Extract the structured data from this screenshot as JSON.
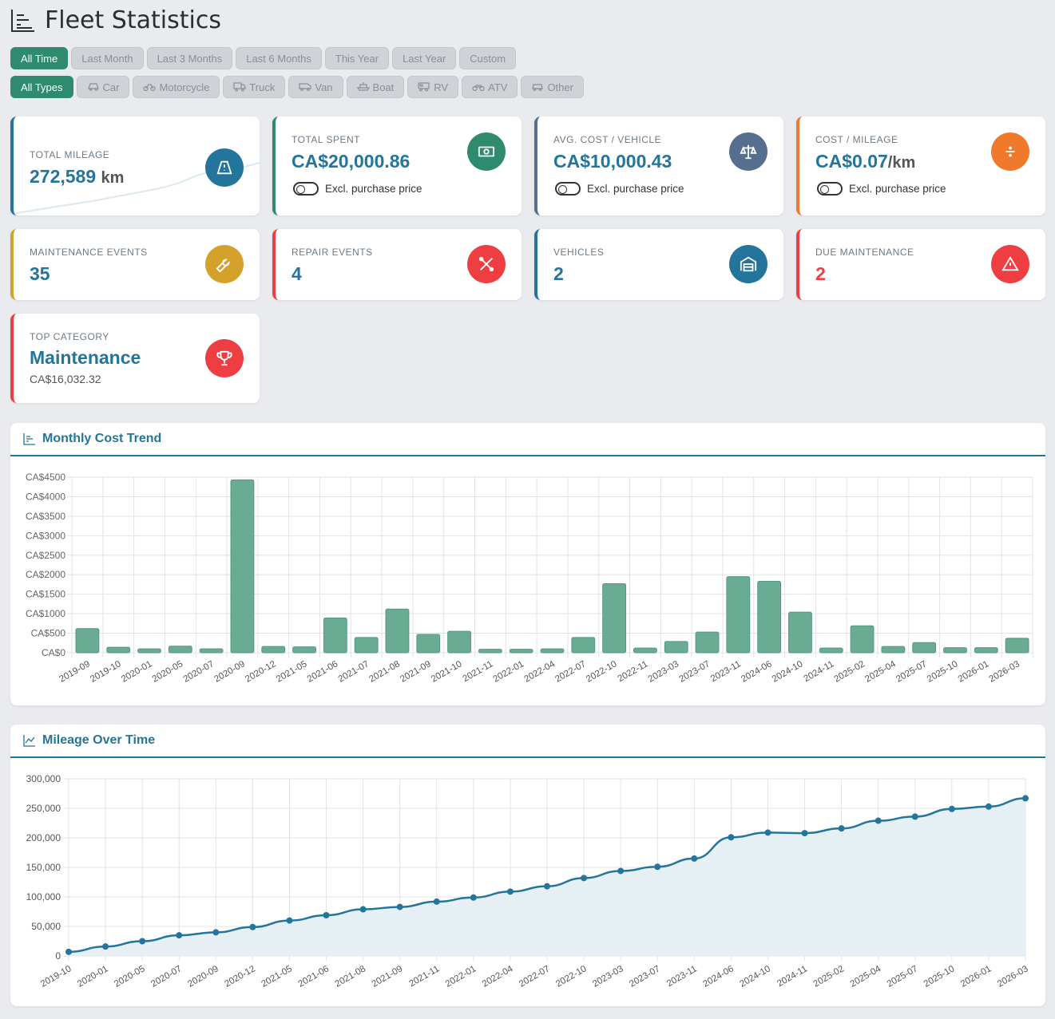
{
  "page": {
    "title": "Fleet Statistics"
  },
  "date_filters": [
    "All Time",
    "Last Month",
    "Last 3 Months",
    "Last 6 Months",
    "This Year",
    "Last Year",
    "Custom"
  ],
  "type_filters": [
    {
      "label": "All Types",
      "icon": "none"
    },
    {
      "label": "Car",
      "icon": "car-icon"
    },
    {
      "label": "Motorcycle",
      "icon": "motorcycle-icon"
    },
    {
      "label": "Truck",
      "icon": "truck-icon"
    },
    {
      "label": "Van",
      "icon": "van-icon"
    },
    {
      "label": "Boat",
      "icon": "boat-icon"
    },
    {
      "label": "RV",
      "icon": "rv-icon"
    },
    {
      "label": "ATV",
      "icon": "atv-icon"
    },
    {
      "label": "Other",
      "icon": "other-vehicle-icon"
    }
  ],
  "active_date_filter": "All Time",
  "active_type_filter": "All Types",
  "stats": {
    "total_mileage": {
      "label": "Total Mileage",
      "value": "272,589",
      "unit": "km",
      "icon": "road-icon",
      "color": "#23759b"
    },
    "total_spent": {
      "label": "Total Spent",
      "value": "CA$20,000.86",
      "toggle": "Excl. purchase price",
      "icon": "money-icon",
      "color": "#2e8b6e"
    },
    "avg_cost": {
      "label": "Avg. Cost / Vehicle",
      "value": "CA$10,000.43",
      "toggle": "Excl. purchase price",
      "icon": "scale-icon",
      "color": "#566f8e"
    },
    "cost_mileage": {
      "label": "Cost / Mileage",
      "value": "CA$0.07",
      "unit": "/km",
      "toggle": "Excl. purchase price",
      "icon": "divide-icon",
      "color": "#f07a2b"
    },
    "maintenance_events": {
      "label": "Maintenance Events",
      "value": "35",
      "icon": "wrench-icon",
      "color": "#d4a22b"
    },
    "repair_events": {
      "label": "Repair Events",
      "value": "4",
      "icon": "tools-icon",
      "color": "#ef3e42"
    },
    "vehicles": {
      "label": "Vehicles",
      "value": "2",
      "icon": "garage-icon",
      "color": "#23759b"
    },
    "due_maintenance": {
      "label": "Due Maintenance",
      "value": "2",
      "icon": "warning-icon",
      "color": "#ef3e42"
    },
    "top_category": {
      "label": "Top Category",
      "value": "Maintenance",
      "sub": "CA$16,032.32",
      "icon": "trophy-icon",
      "color": "#ef3e42"
    }
  },
  "panels": {
    "monthly_cost": {
      "title": "Monthly Cost Trend",
      "icon": "bar-chart-icon"
    },
    "mileage": {
      "title": "Mileage Over Time",
      "icon": "line-chart-icon"
    }
  },
  "chart_data": [
    {
      "type": "bar",
      "title": "Monthly Cost Trend",
      "categories": [
        "2019-09",
        "2019-10",
        "2020-01",
        "2020-05",
        "2020-07",
        "2020-09",
        "2020-12",
        "2021-05",
        "2021-06",
        "2021-07",
        "2021-08",
        "2021-09",
        "2021-10",
        "2021-11",
        "2022-01",
        "2022-04",
        "2022-07",
        "2022-10",
        "2022-11",
        "2023-03",
        "2023-07",
        "2023-11",
        "2024-06",
        "2024-10",
        "2024-11",
        "2025-02",
        "2025-04",
        "2025-07",
        "2025-10",
        "2026-01",
        "2026-03"
      ],
      "values": [
        620,
        140,
        100,
        170,
        100,
        4430,
        160,
        150,
        890,
        390,
        1120,
        470,
        550,
        90,
        90,
        100,
        390,
        1770,
        120,
        290,
        530,
        1950,
        1830,
        1040,
        120,
        690,
        160,
        260,
        130,
        130,
        370
      ],
      "ylim": [
        0,
        4500
      ],
      "yticks": [
        "CA$0",
        "CA$500",
        "CA$1000",
        "CA$1500",
        "CA$2000",
        "CA$2500",
        "CA$3000",
        "CA$3500",
        "CA$4000",
        "CA$4500"
      ],
      "color": "#6aab93",
      "grid": true
    },
    {
      "type": "area",
      "title": "Mileage Over Time",
      "categories": [
        "2019-10",
        "2020-01",
        "2020-05",
        "2020-07",
        "2020-09",
        "2020-12",
        "2021-05",
        "2021-06",
        "2021-08",
        "2021-09",
        "2021-11",
        "2022-01",
        "2022-04",
        "2022-07",
        "2022-10",
        "2023-03",
        "2023-07",
        "2023-11",
        "2024-06",
        "2024-10",
        "2024-11",
        "2025-02",
        "2025-04",
        "2025-07",
        "2025-10",
        "2026-01",
        "2026-03"
      ],
      "values": [
        7000,
        16000,
        25000,
        35000,
        40000,
        49000,
        60000,
        69000,
        79000,
        83000,
        92000,
        99000,
        109000,
        118000,
        132000,
        144000,
        151000,
        165000,
        201000,
        209000,
        208000,
        216000,
        229000,
        236000,
        249000,
        253000,
        267000
      ],
      "ylim": [
        0,
        300000
      ],
      "yticks": [
        "0",
        "50,000",
        "100,000",
        "150,000",
        "200,000",
        "250,000",
        "300,000"
      ],
      "color": "#23759b",
      "grid": true
    }
  ]
}
